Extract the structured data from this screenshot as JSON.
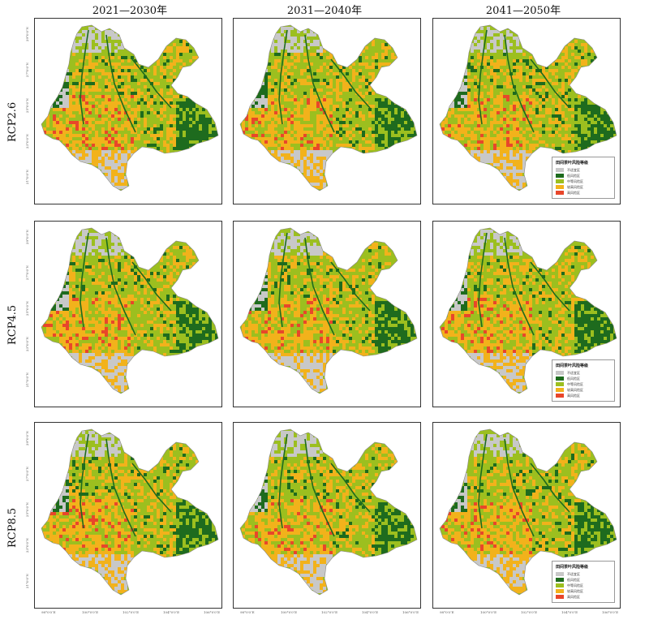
{
  "columns": [
    "2021—2030年",
    "2031—2040年",
    "2041—2050年"
  ],
  "rows": [
    "RCP2.6",
    "RCP4.5",
    "RCP8.5"
  ],
  "lat_ticks": [
    "29°0′0″N",
    "27°0′0″N",
    "25°0′0″N",
    "23°0′0″N",
    "21°0′0″N"
  ],
  "lon_ticks": [
    "98°0′0″E",
    "100°0′0″E",
    "102°0′0″E",
    "104°0′0″E",
    "106°0′0″E"
  ],
  "legend": {
    "title": "田间茶叶风险等级",
    "items": [
      {
        "label": "不适宜区",
        "color": "#c8c8c8"
      },
      {
        "label": "低风险区",
        "color": "#1e6b1e"
      },
      {
        "label": "中等风险区",
        "color": "#9cbf1f"
      },
      {
        "label": "较高风险区",
        "color": "#f2b21b"
      },
      {
        "label": "高风险区",
        "color": "#e8462a"
      }
    ]
  },
  "colors": {
    "unsuitable": "#c8c8c8",
    "low": "#1e6b1e",
    "medium": "#9cbf1f",
    "high": "#f2b21b",
    "very_high": "#e8462a",
    "frame": "#333333"
  },
  "risk_share_by_panel": [
    [
      0.16,
      0.34,
      0.42,
      0.08
    ],
    [
      0.17,
      0.34,
      0.41,
      0.08
    ],
    [
      0.15,
      0.38,
      0.4,
      0.07
    ],
    [
      0.22,
      0.33,
      0.39,
      0.06
    ],
    [
      0.18,
      0.36,
      0.4,
      0.06
    ],
    [
      0.16,
      0.37,
      0.41,
      0.06
    ],
    [
      0.22,
      0.3,
      0.41,
      0.07
    ],
    [
      0.2,
      0.34,
      0.4,
      0.06
    ],
    [
      0.17,
      0.37,
      0.4,
      0.06
    ]
  ]
}
